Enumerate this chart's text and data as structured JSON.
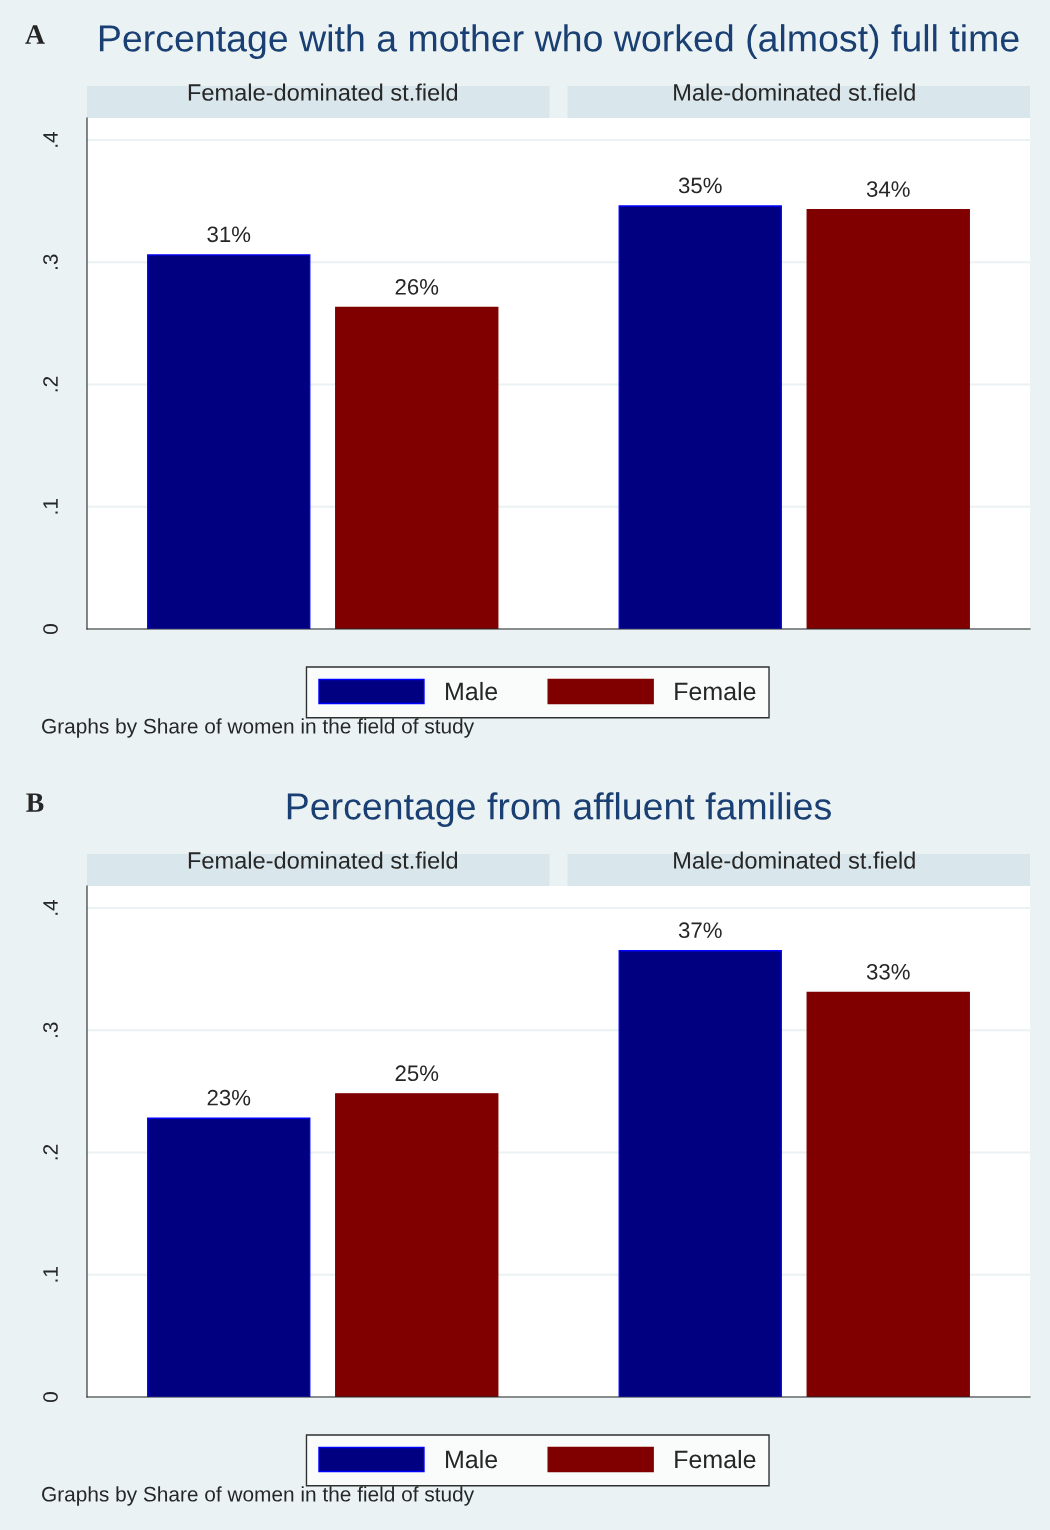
{
  "chart_data": [
    {
      "type": "bar",
      "title": "Percentage with a mother who worked (almost) full time",
      "annotations": [
        "A",
        "Graphs by Share of women in the field of study"
      ],
      "categories": [
        "Female-dominated st.field",
        "Male-dominated st.field"
      ],
      "ylim": [
        0,
        0.418
      ],
      "yticks": [
        0,
        {
          "value": 0.1,
          "label": ".1"
        },
        {
          "value": 0.2,
          "label": ".2"
        },
        {
          "value": 0.3,
          "label": ".3"
        },
        {
          "value": 0.4,
          "label": ".4"
        }
      ],
      "grid": "y",
      "legend": "bottom",
      "series": [
        {
          "name": "Male",
          "color": "#000080",
          "values": [
            0.306,
            0.346
          ],
          "value_labels": [
            "31%",
            "35%"
          ]
        },
        {
          "name": "Female",
          "color": "#800000",
          "values": [
            0.263,
            0.343
          ],
          "value_labels": [
            "26%",
            "34%"
          ]
        }
      ]
    },
    {
      "type": "bar",
      "title": "Percentage from affluent families",
      "annotations": [
        "B",
        "Graphs by Share of women in the field of study"
      ],
      "categories": [
        "Female-dominated st.field",
        "Male-dominated st.field"
      ],
      "ylim": [
        0,
        0.418
      ],
      "yticks": [
        0,
        {
          "value": 0.1,
          "label": ".1"
        },
        {
          "value": 0.2,
          "label": ".2"
        },
        {
          "value": 0.3,
          "label": ".3"
        },
        {
          "value": 0.4,
          "label": ".4"
        }
      ],
      "grid": "y",
      "legend": "bottom",
      "series": [
        {
          "name": "Male",
          "color": "#000080",
          "values": [
            0.228,
            0.365
          ],
          "value_labels": [
            "23%",
            "37%"
          ]
        },
        {
          "name": "Female",
          "color": "#800000",
          "values": [
            0.248,
            0.331
          ],
          "value_labels": [
            "25%",
            "33%"
          ]
        }
      ]
    }
  ]
}
